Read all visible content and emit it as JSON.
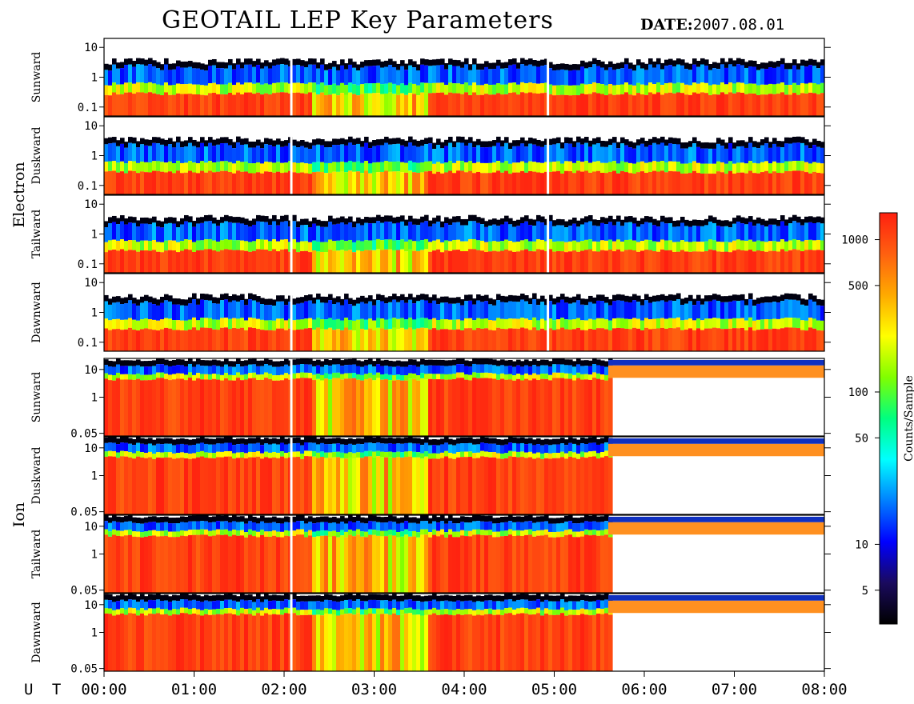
{
  "header": {
    "title": "GEOTAIL LEP Key Parameters",
    "date_label": "DATE:",
    "date_value": "2007.08.01"
  },
  "chart_data": {
    "type": "heatmap",
    "x_time_label": "U T",
    "x_ticks": [
      "00:00",
      "01:00",
      "02:00",
      "03:00",
      "04:00",
      "05:00",
      "06:00",
      "07:00",
      "08:00"
    ],
    "x_range_hours": [
      0,
      8
    ],
    "colorbar": {
      "label": "Counts/Sample",
      "scale": "log",
      "range": [
        3,
        1500
      ],
      "ticks": [
        5,
        10,
        50,
        100,
        500,
        1000
      ],
      "tick_labels": [
        "5",
        "10",
        "50",
        "100",
        "500",
        "1000"
      ],
      "colormap": [
        "#000000",
        "#1a0a5e",
        "#0000ff",
        "#0080ff",
        "#00ffff",
        "#00ff80",
        "#80ff00",
        "#ffff00",
        "#ffaa00",
        "#ff6010",
        "#ff2010"
      ]
    },
    "groups": [
      {
        "name": "Electron",
        "y_scale": "log",
        "y_range": [
          0.05,
          20
        ],
        "y_ticks": [
          0.1,
          1,
          10
        ],
        "y_tick_labels": [
          "0.1",
          "1",
          "10"
        ],
        "panels": [
          "Sunward",
          "Duskward",
          "Tailward",
          "Dawnward"
        ],
        "spectra": [
          {
            "band": "peak (red)",
            "energy_range": [
              0.05,
              0.3
            ],
            "level_counts": 1000
          },
          {
            "band": "green transition",
            "energy_range": [
              0.3,
              0.6
            ],
            "level_counts": 80
          },
          {
            "band": "blue edge",
            "energy_range": [
              0.6,
              2.5
            ],
            "level_counts": 10
          }
        ],
        "data_gaps_hours": [
          2.08,
          4.93
        ]
      },
      {
        "name": "Ion",
        "y_scale": "log",
        "y_range": [
          0.04,
          25
        ],
        "y_ticks": [
          0.05,
          1,
          10
        ],
        "y_tick_labels": [
          "0.05",
          "1",
          "10"
        ],
        "panels": [
          "Sunward",
          "Duskward",
          "Tailward",
          "Dawnward"
        ],
        "spectra": [
          {
            "band": "peak (red/orange)",
            "energy_range": [
              0.1,
              5
            ],
            "level_counts": 800
          },
          {
            "band": "upper edge",
            "energy_range": [
              5,
              15
            ],
            "level_counts": 20
          }
        ],
        "data_gaps_hours": [
          2.08
        ],
        "sparse_after_hours": 5.6
      }
    ]
  }
}
